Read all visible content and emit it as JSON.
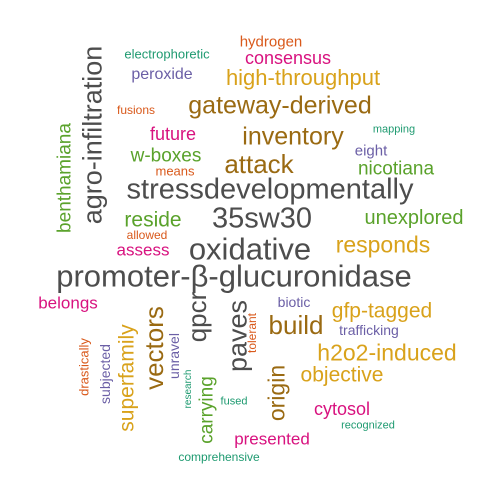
{
  "palette": {
    "gray": "#4d4d4d",
    "brown": "#9a6a12",
    "gold": "#d9a21b",
    "green": "#5aa22b",
    "magenta": "#d8127f",
    "purple": "#6b5fa6",
    "orange": "#d9591b",
    "teal": "#1e9a70"
  },
  "words": [
    {
      "text": "promoter-β-glucuronidase",
      "color": "gray"
    },
    {
      "text": "stressdevelopmentally",
      "color": "gray"
    },
    {
      "text": "oxidative",
      "color": "gray"
    },
    {
      "text": "35sw30",
      "color": "gray"
    },
    {
      "text": "agro-infiltration",
      "color": "gray"
    },
    {
      "text": "paves",
      "color": "gray"
    },
    {
      "text": "qpcr",
      "color": "gray"
    },
    {
      "text": "build",
      "color": "brown"
    },
    {
      "text": "vectors",
      "color": "brown"
    },
    {
      "text": "attack",
      "color": "brown"
    },
    {
      "text": "gateway-derived",
      "color": "brown"
    },
    {
      "text": "inventory",
      "color": "brown"
    },
    {
      "text": "origin",
      "color": "brown"
    },
    {
      "text": "high-throughput",
      "color": "gold"
    },
    {
      "text": "responds",
      "color": "gold"
    },
    {
      "text": "gfp-tagged",
      "color": "gold"
    },
    {
      "text": "h2o2-induced",
      "color": "gold"
    },
    {
      "text": "objective",
      "color": "gold"
    },
    {
      "text": "superfamily",
      "color": "gold"
    },
    {
      "text": "w-boxes",
      "color": "green"
    },
    {
      "text": "reside",
      "color": "green"
    },
    {
      "text": "nicotiana",
      "color": "green"
    },
    {
      "text": "unexplored",
      "color": "green"
    },
    {
      "text": "benthamiana",
      "color": "green"
    },
    {
      "text": "carrying",
      "color": "green"
    },
    {
      "text": "future",
      "color": "magenta"
    },
    {
      "text": "consensus",
      "color": "magenta"
    },
    {
      "text": "assess",
      "color": "magenta"
    },
    {
      "text": "belongs",
      "color": "magenta"
    },
    {
      "text": "cytosol",
      "color": "magenta"
    },
    {
      "text": "presented",
      "color": "magenta"
    },
    {
      "text": "peroxide",
      "color": "purple"
    },
    {
      "text": "eight",
      "color": "purple"
    },
    {
      "text": "biotic",
      "color": "purple"
    },
    {
      "text": "trafficking",
      "color": "purple"
    },
    {
      "text": "unravel",
      "color": "purple"
    },
    {
      "text": "subjected",
      "color": "purple"
    },
    {
      "text": "hydrogen",
      "color": "orange"
    },
    {
      "text": "fusions",
      "color": "orange"
    },
    {
      "text": "means",
      "color": "orange"
    },
    {
      "text": "allowed",
      "color": "orange"
    },
    {
      "text": "drastically",
      "color": "orange"
    },
    {
      "text": "tolerant",
      "color": "orange"
    },
    {
      "text": "electrophoretic",
      "color": "teal"
    },
    {
      "text": "mapping",
      "color": "teal"
    },
    {
      "text": "research",
      "color": "teal"
    },
    {
      "text": "fused",
      "color": "teal"
    },
    {
      "text": "recognized",
      "color": "teal"
    },
    {
      "text": "comprehensive",
      "color": "teal"
    }
  ]
}
